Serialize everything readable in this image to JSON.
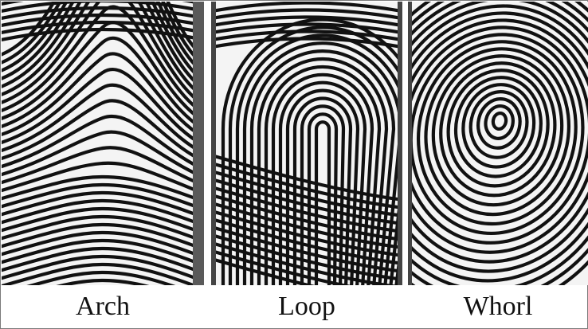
{
  "panels": [
    {
      "id": "arch",
      "label": "Arch",
      "pattern": "arch"
    },
    {
      "id": "loop",
      "label": "Loop",
      "pattern": "loop"
    },
    {
      "id": "whorl",
      "label": "Whorl",
      "pattern": "whorl"
    }
  ],
  "colors": {
    "ridge": "#111111",
    "paper": "#f4f4f4",
    "background": "#ffffff"
  }
}
